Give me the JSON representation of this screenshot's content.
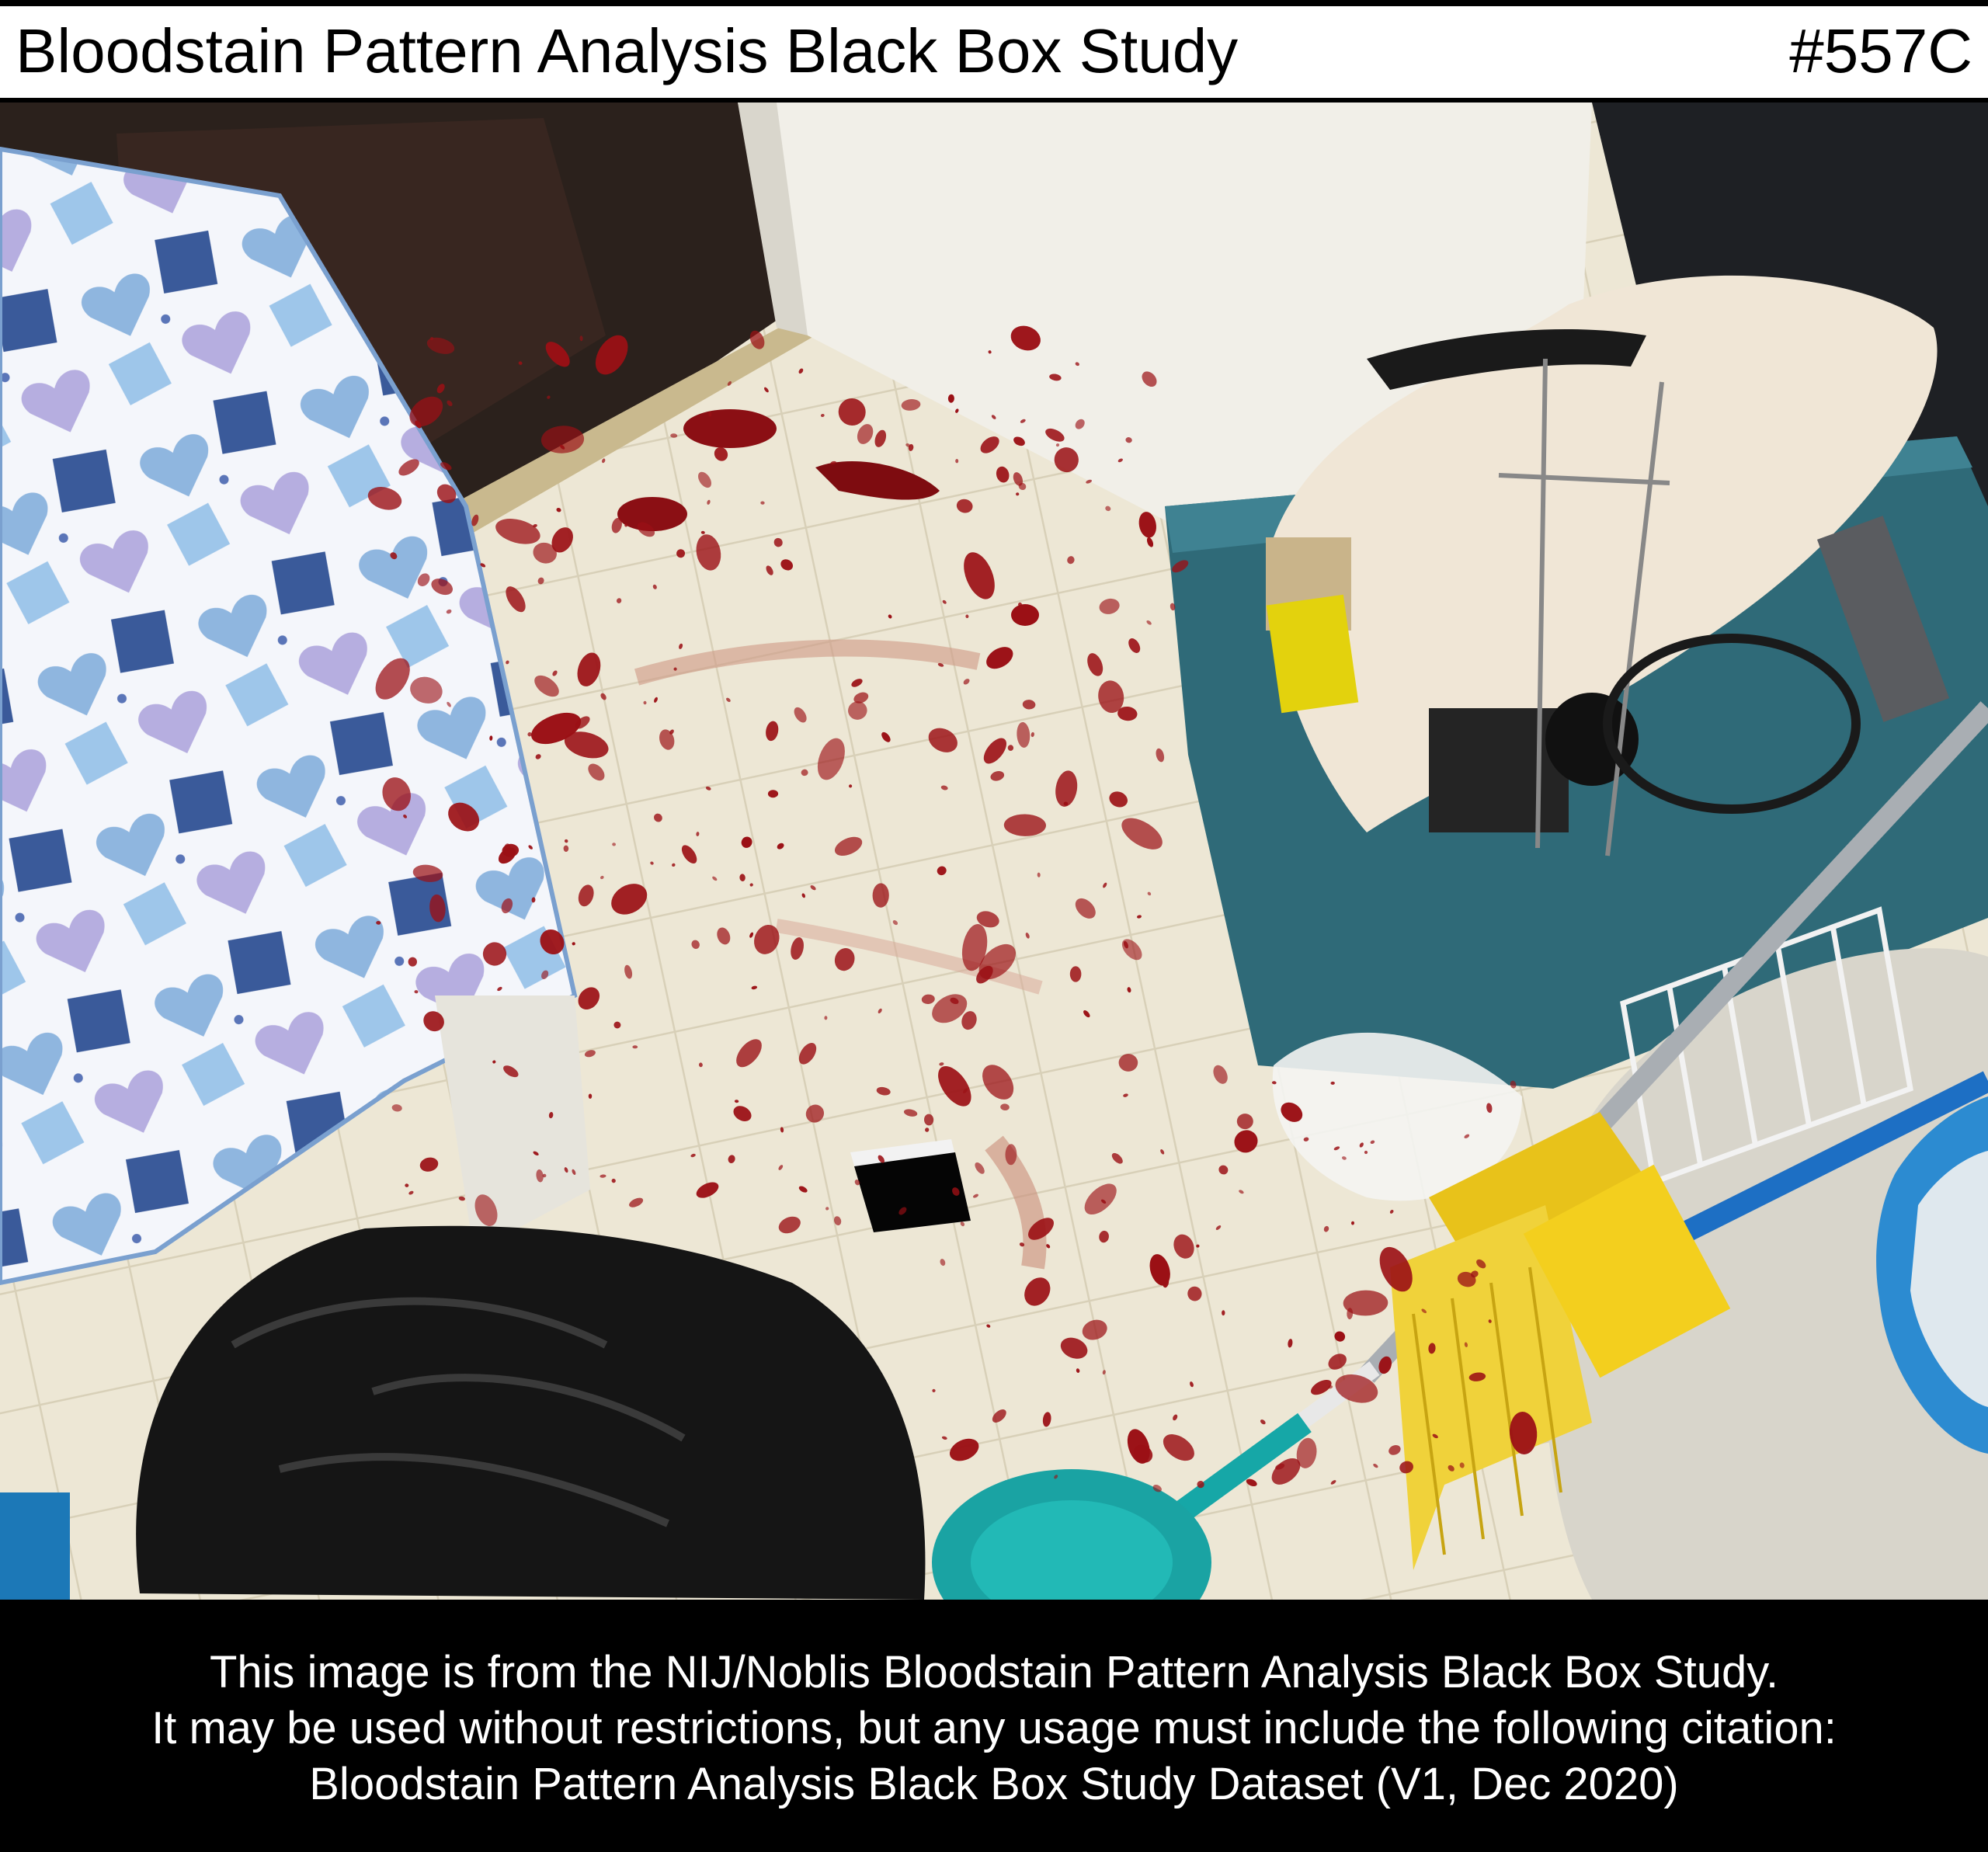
{
  "header": {
    "title": "Bloodstain Pattern Analysis Black Box Study",
    "image_code": "#557C"
  },
  "footer": {
    "line1": "This image is from the NIJ/Noblis Bloodstain Pattern Analysis Black Box Study.",
    "line2": "It may be used without restrictions, but any usage must include the following citation:",
    "line3": "Bloodstain Pattern Analysis Black Box Study Dataset (V1, Dec 2020)"
  },
  "colors": {
    "header_bg": "#ffffff",
    "footer_bg": "#000000",
    "blood": "#9b1015",
    "floor": "#ece6d3",
    "tote": "#2e6b7a",
    "broom_head": "#e8c21a",
    "brush_head": "#1aa3a3"
  }
}
